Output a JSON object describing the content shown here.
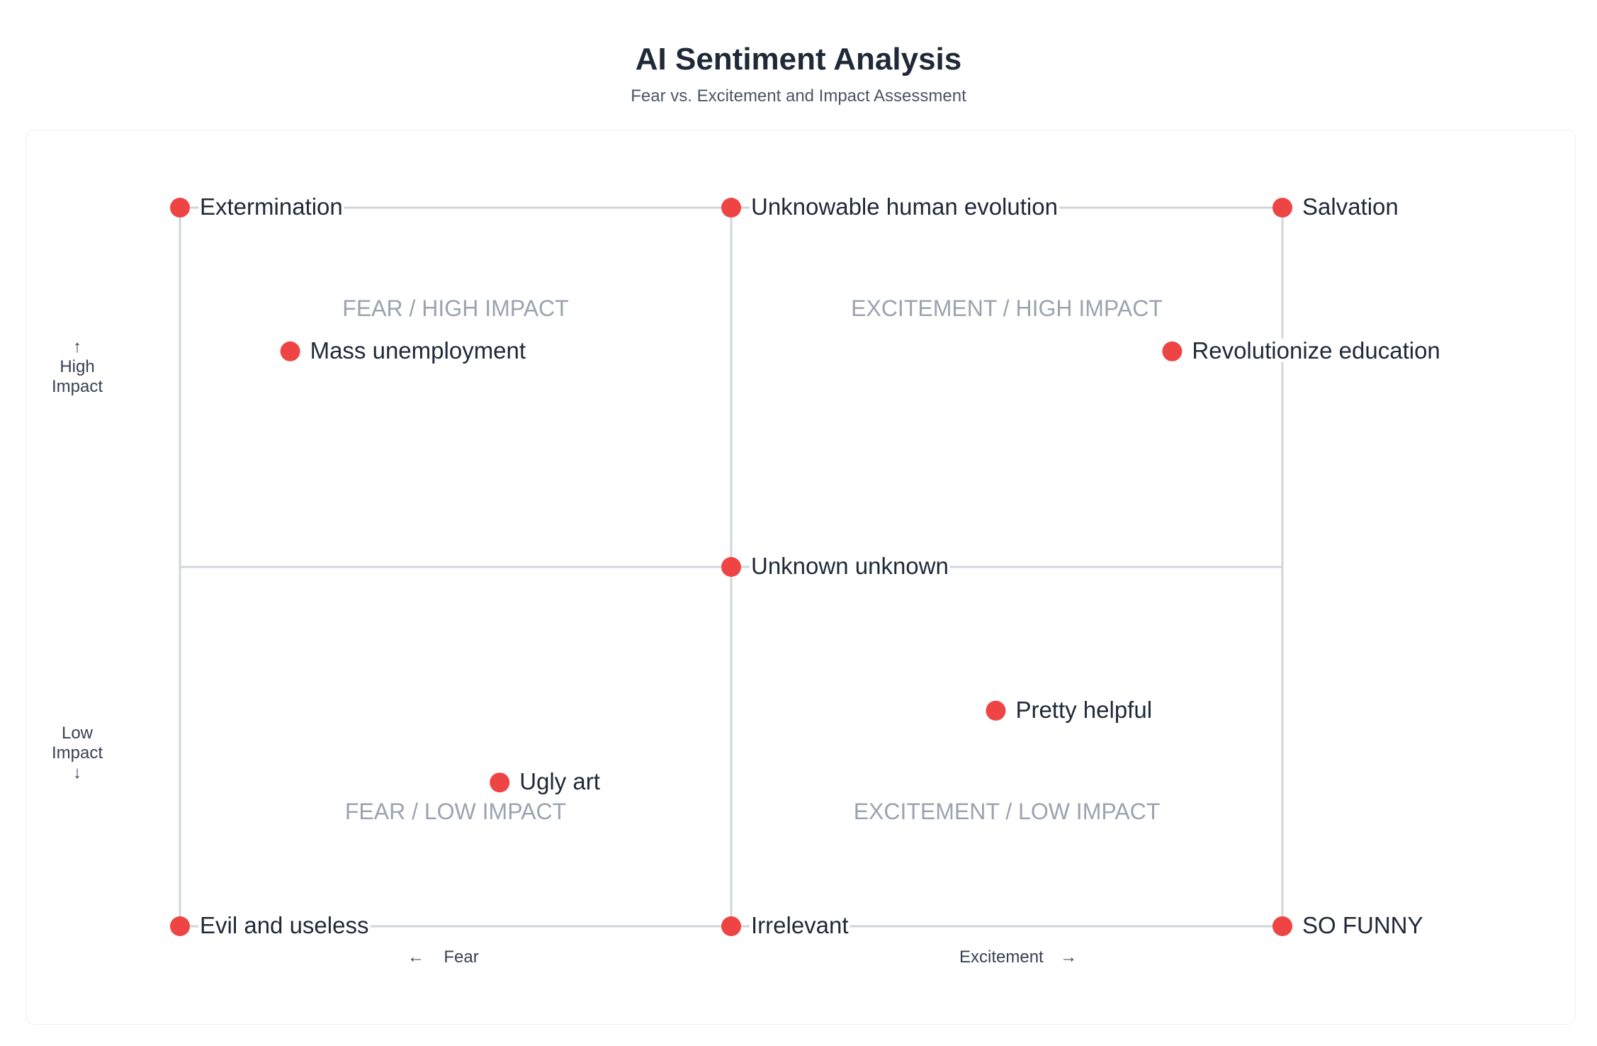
{
  "title": "AI Sentiment Analysis",
  "subtitle": "Fear vs. Excitement and Impact Assessment",
  "axes": {
    "y_high": "High Impact",
    "y_high_line1": "High",
    "y_high_line2": "Impact",
    "y_low": "Low Impact",
    "y_low_line1": "Low",
    "y_low_line2": "Impact",
    "x_left": "Fear",
    "x_right": "Excitement",
    "arrow_up": "↑",
    "arrow_down": "↓",
    "arrow_left": "←",
    "arrow_right": "→"
  },
  "colors": {
    "point": "#ef4444",
    "grid": "#d1d5db",
    "quadrant_label": "#9ca3af",
    "point_label": "#1f2937"
  },
  "chart_data": {
    "type": "scatter",
    "title": "AI Sentiment Analysis",
    "subtitle": "Fear vs. Excitement and Impact Assessment",
    "xlabel": "Fear ← → Excitement",
    "ylabel": "Low Impact ↓ ↑ High Impact",
    "xlim": [
      -1,
      1
    ],
    "ylim": [
      -1,
      1
    ],
    "grid": true,
    "quadrants": [
      {
        "label": "FEAR / HIGH IMPACT",
        "x": -0.5,
        "y": 0.72
      },
      {
        "label": "EXCITEMENT / HIGH IMPACT",
        "x": 0.5,
        "y": 0.72
      },
      {
        "label": "FEAR / LOW IMPACT",
        "x": -0.5,
        "y": -0.68
      },
      {
        "label": "EXCITEMENT / LOW IMPACT",
        "x": 0.5,
        "y": -0.68
      }
    ],
    "points": [
      {
        "label": "Extermination",
        "x": -1,
        "y": 1
      },
      {
        "label": "Unknowable human evolution",
        "x": 0,
        "y": 1
      },
      {
        "label": "Salvation",
        "x": 1,
        "y": 1
      },
      {
        "label": "Mass unemployment",
        "x": -0.8,
        "y": 0.6
      },
      {
        "label": "Revolutionize education",
        "x": 0.8,
        "y": 0.6
      },
      {
        "label": "Unknown unknown",
        "x": 0,
        "y": 0
      },
      {
        "label": "Pretty helpful",
        "x": 0.48,
        "y": -0.4
      },
      {
        "label": "Ugly art",
        "x": -0.42,
        "y": -0.6
      },
      {
        "label": "Evil and useless",
        "x": -1,
        "y": -1
      },
      {
        "label": "Irrelevant",
        "x": 0,
        "y": -1
      },
      {
        "label": "SO FUNNY",
        "x": 1,
        "y": -1
      }
    ]
  }
}
